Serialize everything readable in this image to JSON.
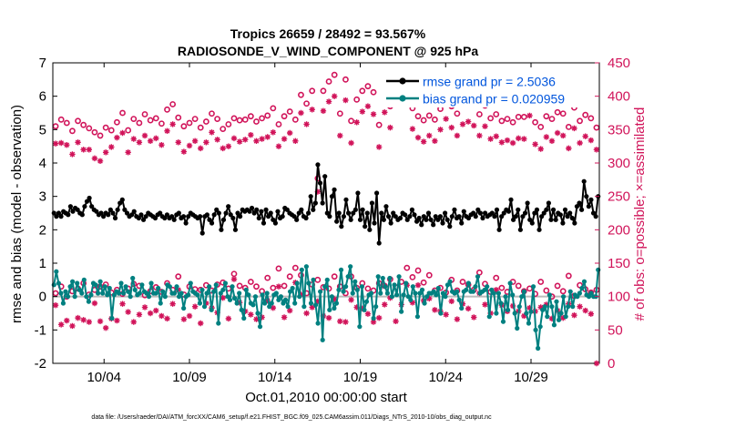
{
  "chart_data": {
    "type": "line",
    "title": "Tropics 26659 / 28492 = 93.567%",
    "subtitle": "RADIOSONDE_V_WIND_COMPONENT @ 925 hPa",
    "xlabel": "Oct.01,2010 00:00:00 start",
    "ylabel": "rmse and bias (model - observation)",
    "y2label": "# of obs: o=possible; ×=assimilated",
    "footer": "data file: /Users/raeder/DAI/ATM_forcXX/CAM6_setup/f.e21.FHIST_BGC.f09_025.CAM6assim.011/Diags_NTrS_2010-10/obs_diag_output.nc",
    "xlim": [
      1,
      33
    ],
    "ylim": [
      -2,
      7
    ],
    "y2lim": [
      0,
      450
    ],
    "x_ticks": [
      4,
      9,
      14,
      19,
      24,
      29
    ],
    "x_tick_labels": [
      "10/04",
      "10/09",
      "10/14",
      "10/19",
      "10/24",
      "10/29"
    ],
    "y_ticks": [
      -2,
      -1,
      0,
      1,
      2,
      3,
      4,
      5,
      6,
      7
    ],
    "y2_ticks": [
      0,
      50,
      100,
      150,
      200,
      250,
      300,
      350,
      400,
      450
    ],
    "legend_position": "top-right",
    "colors": {
      "rmse": "#000000",
      "bias": "#008080",
      "obs": "#d1145a",
      "zero_line": "#bbbbbb"
    },
    "series": [
      {
        "name": "rmse grand pr = 2.5036",
        "axis": "left",
        "values": [
          2.5,
          2.4,
          2.5,
          2.4,
          2.55,
          2.5,
          2.45,
          2.7,
          2.55,
          2.65,
          2.6,
          2.5,
          2.45,
          2.7,
          2.85,
          2.95,
          2.7,
          2.6,
          2.55,
          2.45,
          2.5,
          2.4,
          2.5,
          2.45,
          2.6,
          2.5,
          2.35,
          2.6,
          2.8,
          2.9,
          2.6,
          2.5,
          2.4,
          2.45,
          2.55,
          2.4,
          2.35,
          2.45,
          2.3,
          2.4,
          2.5,
          2.45,
          2.4,
          2.35,
          2.45,
          2.5,
          2.4,
          2.35,
          2.45,
          2.35,
          2.4,
          2.3,
          2.45,
          2.5,
          2.35,
          2.4,
          2.2,
          2.4,
          2.5,
          2.45,
          2.4,
          2.35,
          2.4,
          1.9,
          2.4,
          2.45,
          2.3,
          2.2,
          2.45,
          2.6,
          2.5,
          2.0,
          2.3,
          2.5,
          2.7,
          2.45,
          2.35,
          2.0,
          2.5,
          2.4,
          2.6,
          2.55,
          2.6,
          2.55,
          2.65,
          2.5,
          2.6,
          2.35,
          2.55,
          2.2,
          2.6,
          2.4,
          2.5,
          2.3,
          2.2,
          2.55,
          2.35,
          2.4,
          2.65,
          2.6,
          2.5,
          2.45,
          2.4,
          2.3,
          2.5,
          2.6,
          2.4,
          2.35,
          2.5,
          3.0,
          2.6,
          2.8,
          3.95,
          3.4,
          2.8,
          3.6,
          2.5,
          2.4,
          3.0,
          3.2,
          2.25,
          2.5,
          2.1,
          2.4,
          2.9,
          2.5,
          2.3,
          2.5,
          2.6,
          3.1,
          2.3,
          2.6,
          2.1,
          2.5,
          2.0,
          2.8,
          2.2,
          3.1,
          1.6,
          2.5,
          2.3,
          2.7,
          2.4,
          2.2,
          2.5,
          2.4,
          2.3,
          2.35,
          2.5,
          2.45,
          2.3,
          2.4,
          2.6,
          2.45,
          2.25,
          2.35,
          2.15,
          2.4,
          2.3,
          2.5,
          2.3,
          2.15,
          2.4,
          2.3,
          2.4,
          2.2,
          2.5,
          2.3,
          2.1,
          2.4,
          2.6,
          2.35,
          2.4,
          2.2,
          2.55,
          2.4,
          2.35,
          2.45,
          2.5,
          2.4,
          2.6,
          2.5,
          2.35,
          2.5,
          2.4,
          2.45,
          2.5,
          2.4,
          2.6,
          2.0,
          2.4,
          2.5,
          2.6,
          2.55,
          2.9,
          2.3,
          2.4,
          2.6,
          2.0,
          2.4,
          2.5,
          2.8,
          2.3,
          2.2,
          2.5,
          2.6,
          2.0,
          2.4,
          2.5,
          2.6,
          2.8,
          2.3,
          2.6,
          2.3,
          2.5,
          2.45,
          2.2,
          2.6,
          2.4,
          2.5,
          2.35,
          2.2,
          2.7,
          2.8,
          2.6,
          3.45,
          3.0,
          2.7,
          2.9,
          2.5,
          2.4,
          3.0
        ]
      },
      {
        "name": "bias grand pr = 0.020959",
        "axis": "left",
        "values": [
          0.35,
          0.75,
          0.4,
          0.1,
          -0.2,
          0.15,
          0.0,
          0.3,
          0.45,
          0.0,
          0.4,
          0.2,
          0.1,
          0.5,
          0.0,
          -0.15,
          0.05,
          0.4,
          0.35,
          0.1,
          0.45,
          0.1,
          0.3,
          0.05,
          0.25,
          -0.65,
          0.05,
          0.15,
          0.1,
          0.4,
          0.1,
          0.3,
          0.15,
          0.0,
          0.55,
          0.2,
          0.05,
          0.1,
          0.35,
          0.15,
          0.1,
          0.0,
          0.4,
          0.1,
          0.1,
          0.25,
          -0.2,
          0.15,
          0.0,
          0.35,
          0.3,
          0.1,
          0.1,
          0.3,
          0.0,
          0.1,
          -0.35,
          0.0,
          0.05,
          0.4,
          0.15,
          0.1,
          0.05,
          -0.2,
          0.2,
          -0.3,
          0.1,
          0.3,
          -0.4,
          0.15,
          0.35,
          -0.8,
          0.1,
          0.2,
          0.4,
          0.0,
          -0.1,
          0.3,
          -0.05,
          -0.2,
          0.1,
          -0.4,
          -0.65,
          0.2,
          0.05,
          -0.2,
          -0.25,
          0.0,
          -0.5,
          -0.9,
          0.05,
          -0.2,
          0.1,
          -0.3,
          -0.2,
          0.05,
          0.1,
          -0.1,
          0.0,
          -0.2,
          -0.1,
          -0.3,
          0.15,
          0.25,
          -0.2,
          0.4,
          0.0,
          0.8,
          -0.3,
          0.9,
          0.4,
          -0.2,
          0.5,
          -0.25,
          -0.8,
          0.15,
          -1.3,
          0.3,
          0.5,
          -0.4,
          0.0,
          -0.35,
          -0.2,
          0.2,
          0.8,
          0.15,
          0.3,
          0.6,
          0.9,
          0.1,
          0.45,
          0.2,
          -0.9,
          0.3,
          -0.4,
          -0.15,
          0.05,
          0.1,
          -0.65,
          -0.3,
          0.6,
          0.1,
          0.55,
          0.3,
          0.1,
          0.55,
          0.0,
          0.35,
          0.05,
          0.6,
          -0.45,
          0.05,
          0.4,
          0.0,
          -0.1,
          0.3,
          0.1,
          -0.6,
          0.1,
          0.2,
          -0.2,
          0.0,
          0.1,
          0.1,
          0.15,
          0.05,
          0.25,
          -0.5,
          0.1,
          0.0,
          0.35,
          0.45,
          0.15,
          0.1,
          0.15,
          -0.1,
          -0.35,
          0.15,
          0.2,
          0.4,
          0.15,
          0.15,
          0.3,
          0.6,
          0.1,
          0.15,
          0.2,
          0.3,
          -0.6,
          0.2,
          0.1,
          -0.5,
          0.1,
          -0.2,
          -0.75,
          0.0,
          -0.4,
          0.4,
          0.05,
          -0.5,
          -0.95,
          -0.3,
          0.0,
          0.15,
          -0.5,
          -0.8,
          -0.45,
          0.3,
          -1.0,
          -1.55,
          -0.9,
          -0.4,
          -0.3,
          -0.6,
          0.05,
          -0.3,
          -0.85,
          -0.15,
          -0.7,
          -0.5,
          0.0,
          -0.6,
          -0.3,
          0.15,
          -0.3,
          0.05,
          0.0,
          0.1,
          0.25,
          0.45,
          0.05,
          0.0,
          0.1,
          0.0,
          0.0,
          0.8
        ]
      }
    ],
    "obs_counts": {
      "axis": "right",
      "possible": [
        355,
        365,
        360,
        348,
        363,
        357,
        352,
        346,
        341,
        353,
        349,
        361,
        375,
        349,
        366,
        360,
        373,
        364,
        367,
        359,
        380,
        388,
        368,
        355,
        360,
        366,
        353,
        362,
        374,
        366,
        351,
        358,
        367,
        364,
        365,
        370,
        362,
        367,
        371,
        382,
        358,
        370,
        377,
        365,
        402,
        389,
        408,
        277,
        408,
        422,
        432,
        374,
        425,
        363,
        395,
        408,
        415,
        406,
        357,
        409,
        385,
        424,
        427,
        430,
        382,
        370,
        364,
        371,
        365,
        381,
        398,
        385,
        374,
        389,
        395,
        388,
        373,
        386,
        367,
        373,
        363,
        366,
        361,
        369,
        369,
        401,
        361,
        354,
        370,
        366,
        376,
        374,
        354,
        383,
        363,
        372,
        367,
        353
      ],
      "assimilated": [
        329,
        330,
        327,
        313,
        331,
        320,
        320,
        307,
        303,
        316,
        324,
        338,
        345,
        316,
        336,
        331,
        341,
        333,
        337,
        327,
        348,
        358,
        331,
        317,
        326,
        333,
        322,
        331,
        346,
        335,
        322,
        325,
        337,
        332,
        335,
        342,
        333,
        336,
        339,
        346,
        325,
        336,
        345,
        333,
        375,
        358,
        380,
        257,
        378,
        392,
        400,
        341,
        394,
        330,
        361,
        377,
        385,
        373,
        324,
        376,
        353,
        390,
        396,
        397,
        351,
        338,
        332,
        341,
        333,
        350,
        366,
        353,
        341,
        358,
        362,
        356,
        341,
        355,
        336,
        340,
        331,
        334,
        330,
        337,
        336,
        371,
        328,
        321,
        339,
        333,
        345,
        341,
        322,
        352,
        330,
        340,
        334,
        320
      ],
      "possible_low": [
        105,
        115,
        100,
        108,
        112,
        120,
        103,
        110,
        115,
        118,
        106,
        110,
        104,
        112,
        119,
        116,
        102,
        108,
        114,
        107,
        120,
        110,
        130,
        103,
        115,
        111,
        110,
        117,
        109,
        118,
        121,
        112,
        134,
        116,
        113,
        122,
        115,
        108,
        128,
        113,
        142,
        116,
        130,
        143,
        132,
        105,
        118,
        125,
        114,
        112,
        130,
        115,
        105,
        130,
        113,
        120,
        112,
        109,
        120,
        116,
        126,
        114,
        122,
        143,
        129,
        139,
        121,
        132,
        109,
        113,
        106,
        125,
        109,
        122,
        118,
        110,
        136,
        119,
        107,
        128,
        113,
        107,
        122,
        116,
        108,
        112,
        104,
        122,
        109,
        100,
        116,
        108,
        131,
        101,
        117,
        111,
        106,
        110
      ],
      "assimilated_low": [
        87,
        58,
        64,
        56,
        68,
        65,
        62,
        90,
        63,
        53,
        67,
        64,
        89,
        77,
        62,
        73,
        84,
        75,
        79,
        71,
        67,
        89,
        110,
        66,
        71,
        85,
        60,
        90,
        83,
        76,
        98,
        67,
        126,
        91,
        78,
        73,
        66,
        69,
        94,
        83,
        115,
        69,
        79,
        121,
        103,
        75,
        84,
        93,
        71,
        68,
        96,
        63,
        62,
        95,
        84,
        82,
        74,
        62,
        68,
        88,
        98,
        63,
        88,
        117,
        91,
        117,
        94,
        97,
        80,
        78,
        73,
        93,
        66,
        89,
        82,
        69,
        105,
        88,
        75,
        110,
        87,
        78,
        86,
        78,
        71,
        83,
        78,
        84,
        88,
        67,
        79,
        68,
        89,
        72,
        85,
        79,
        74,
        0
      ]
    }
  }
}
